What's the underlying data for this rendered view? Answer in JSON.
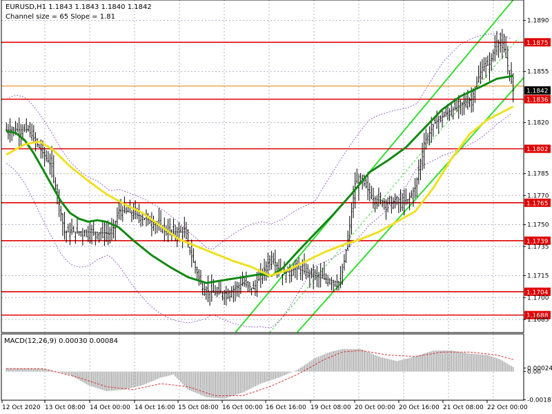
{
  "header": {
    "symbol_line": "EURUSD,H1  1.1843 1.1843 1.1840 1.1842",
    "channel_line": "Channel size = 65 Slope = 1.81"
  },
  "macd": {
    "label": "MACD(12,26,9) 0.00030 0.00084"
  },
  "colors": {
    "level_line": "#e00000",
    "current_price": "#e08000",
    "fast_ma": "#118811",
    "slow_ma": "#f0e020",
    "channel": "#33dd33",
    "bands": "#9966cc",
    "histogram": "#b8b8b8",
    "signal": "#d83030",
    "grid": "#b0b0c8",
    "candle": "#000000"
  },
  "chart_data": [
    {
      "type": "candlestick",
      "title": "EURUSD,H1",
      "timeframe": "H1",
      "last_bar": {
        "open": 1.1843,
        "high": 1.1843,
        "low": 1.184,
        "close": 1.1842
      },
      "current_price": "1.1842",
      "ylim": [
        1.1676,
        1.1904
      ],
      "y_ticks": [
        {
          "value": 1.189,
          "label": "1.1890"
        },
        {
          "value": 1.1855,
          "label": "1.1855"
        },
        {
          "value": 1.182,
          "label": "1.1820"
        },
        {
          "value": 1.1785,
          "label": "1.1785"
        },
        {
          "value": 1.177,
          "label": "1.1770"
        },
        {
          "value": 1.175,
          "label": "1.1750"
        },
        {
          "value": 1.1735,
          "label": "1.1735"
        },
        {
          "value": 1.1715,
          "label": "1.1715"
        },
        {
          "value": 1.17,
          "label": "1.1700"
        },
        {
          "value": 1.1685,
          "label": "1.1685"
        }
      ],
      "x_ticks": [
        "12 Oct 2020",
        "13 Oct 08:00",
        "14 Oct 00:00",
        "14 Oct 16:00",
        "15 Oct 08:00",
        "16 Oct 00:00",
        "16 Oct 16:00",
        "19 Oct 08:00",
        "20 Oct 00:00",
        "20 Oct 16:00",
        "21 Oct 08:00",
        "22 Oct 00:00"
      ],
      "levels": [
        {
          "value": 1.1875,
          "label": "1.1875"
        },
        {
          "value": 1.1836,
          "label": "1.1836"
        },
        {
          "value": 1.1802,
          "label": "1.1802"
        },
        {
          "value": 1.1765,
          "label": "1.1765"
        },
        {
          "value": 1.1739,
          "label": "1.1739"
        },
        {
          "value": 1.1704,
          "label": "1.1704"
        },
        {
          "value": 1.1688,
          "label": "1.1688"
        }
      ],
      "channel": {
        "size": 65,
        "slope": 1.81
      },
      "series": [
        {
          "name": "fast MA",
          "style": "line",
          "points": [
            [
              0,
              1.1814
            ],
            [
              5,
              1.1813
            ],
            [
              10,
              1.1808
            ],
            [
              15,
              1.1799
            ],
            [
              20,
              1.1788
            ],
            [
              25,
              1.1777
            ],
            [
              30,
              1.1766
            ],
            [
              35,
              1.1758
            ],
            [
              40,
              1.1754
            ],
            [
              45,
              1.1752
            ],
            [
              50,
              1.1753
            ],
            [
              55,
              1.1752
            ],
            [
              62,
              1.1748
            ],
            [
              70,
              1.1739
            ],
            [
              80,
              1.1729
            ],
            [
              90,
              1.1721
            ],
            [
              100,
              1.1714
            ],
            [
              110,
              1.171
            ],
            [
              120,
              1.1712
            ],
            [
              130,
              1.1714
            ],
            [
              140,
              1.1716
            ],
            [
              146,
              1.1715
            ],
            [
              152,
              1.172
            ],
            [
              160,
              1.1731
            ],
            [
              170,
              1.1744
            ],
            [
              180,
              1.1757
            ],
            [
              190,
              1.1771
            ],
            [
              200,
              1.1786
            ],
            [
              210,
              1.1794
            ],
            [
              220,
              1.1803
            ],
            [
              230,
              1.1816
            ],
            [
              240,
              1.1829
            ],
            [
              250,
              1.1838
            ],
            [
              262,
              1.1845
            ],
            [
              270,
              1.185
            ],
            [
              279,
              1.1852
            ]
          ]
        },
        {
          "name": "slow MA",
          "style": "line",
          "points": [
            [
              0,
              1.1798
            ],
            [
              10,
              1.1805
            ],
            [
              18,
              1.1807
            ],
            [
              25,
              1.1802
            ],
            [
              35,
              1.179
            ],
            [
              45,
              1.178
            ],
            [
              55,
              1.1771
            ],
            [
              65,
              1.1764
            ],
            [
              75,
              1.1758
            ],
            [
              85,
              1.1749
            ],
            [
              95,
              1.174
            ],
            [
              105,
              1.1735
            ],
            [
              115,
              1.173
            ],
            [
              125,
              1.1725
            ],
            [
              135,
              1.1721
            ],
            [
              145,
              1.1715
            ],
            [
              155,
              1.1719
            ],
            [
              165,
              1.1725
            ],
            [
              175,
              1.1731
            ],
            [
              185,
              1.1736
            ],
            [
              195,
              1.174
            ],
            [
              205,
              1.1745
            ],
            [
              215,
              1.1752
            ],
            [
              225,
              1.1759
            ],
            [
              235,
              1.1775
            ],
            [
              245,
              1.1795
            ],
            [
              255,
              1.1812
            ],
            [
              265,
              1.1822
            ],
            [
              279,
              1.1831
            ]
          ]
        }
      ]
    },
    {
      "type": "bar",
      "title": "MACD(12,26,9)",
      "values_label": "0.00030 0.00084",
      "ylim": [
        -0.0019,
        0.0025
      ],
      "y_ticks": [
        {
          "value": 0.00024,
          "label": "0.00024"
        },
        {
          "value": 0.0,
          "label": "0.00"
        },
        {
          "value": -0.00187,
          "label": "-0.00187"
        }
      ],
      "series": [
        {
          "name": "histogram",
          "style": "bar",
          "points": [
            [
              0,
              0.00022
            ],
            [
              20,
              0.0002
            ],
            [
              35,
              -0.0002
            ],
            [
              45,
              -0.0009
            ],
            [
              55,
              -0.0013
            ],
            [
              65,
              -0.0012
            ],
            [
              75,
              -0.0009
            ],
            [
              85,
              -0.0004
            ],
            [
              92,
              -0.0002
            ],
            [
              100,
              -0.0012
            ],
            [
              110,
              -0.0017
            ],
            [
              120,
              -0.0018
            ],
            [
              130,
              -0.0014
            ],
            [
              140,
              -0.0008
            ],
            [
              150,
              -0.0004
            ],
            [
              160,
              0.0001
            ],
            [
              170,
              0.0009
            ],
            [
              178,
              0.0013
            ],
            [
              185,
              0.0015
            ],
            [
              195,
              0.0015
            ],
            [
              205,
              0.001
            ],
            [
              215,
              0.0007
            ],
            [
              225,
              0.001
            ],
            [
              235,
              0.0014
            ],
            [
              245,
              0.0014
            ],
            [
              255,
              0.0012
            ],
            [
              265,
              0.0011
            ],
            [
              272,
              0.0008
            ],
            [
              279,
              0.0003
            ]
          ]
        },
        {
          "name": "signal",
          "style": "dashed",
          "points": [
            [
              0,
              0.0002
            ],
            [
              20,
              0.0002
            ],
            [
              40,
              -0.0004
            ],
            [
              55,
              -0.001
            ],
            [
              70,
              -0.0012
            ],
            [
              85,
              -0.0008
            ],
            [
              100,
              -0.001
            ],
            [
              115,
              -0.0016
            ],
            [
              130,
              -0.0016
            ],
            [
              145,
              -0.001
            ],
            [
              160,
              -0.0002
            ],
            [
              175,
              0.0008
            ],
            [
              185,
              0.0013
            ],
            [
              195,
              0.0014
            ],
            [
              210,
              0.0011
            ],
            [
              225,
              0.001
            ],
            [
              240,
              0.0013
            ],
            [
              255,
              0.0013
            ],
            [
              270,
              0.0011
            ],
            [
              279,
              0.0008
            ]
          ]
        }
      ]
    }
  ]
}
